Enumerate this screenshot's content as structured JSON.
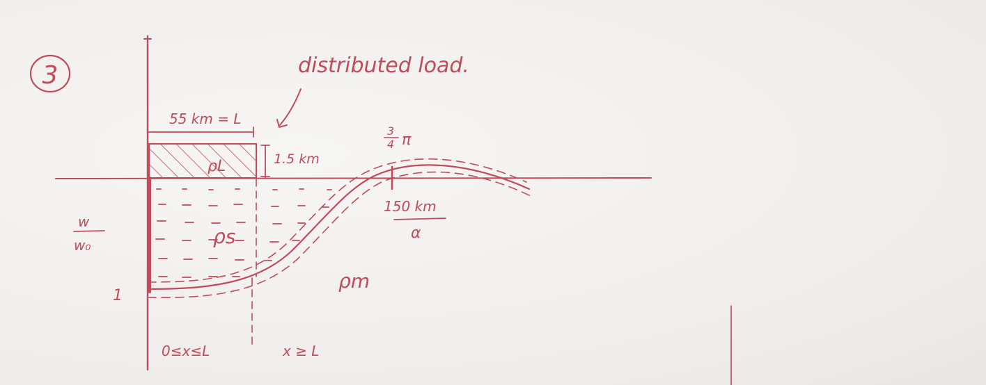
{
  "diagram": {
    "problem_number": "3",
    "annotation_load": "distributed load.",
    "dim_width": "55 km = L",
    "dim_height": "1.5 km",
    "rho_load": "ρL",
    "rho_sediment": "ρs",
    "rho_mantle": "ρm",
    "y_axis_label_top": "w",
    "y_axis_label_bottom": "w₀",
    "y_tick_value": "1",
    "peak_frac_top": "3",
    "peak_frac_bottom": "4",
    "peak_pi": "π",
    "peak_dist_top": "150 km",
    "peak_dist_bottom": "α",
    "region_left": "0≤x≤L",
    "region_right": "x ≥ L",
    "colors": {
      "ink": "#c14a5b",
      "paper": "#f3f1ef"
    }
  }
}
